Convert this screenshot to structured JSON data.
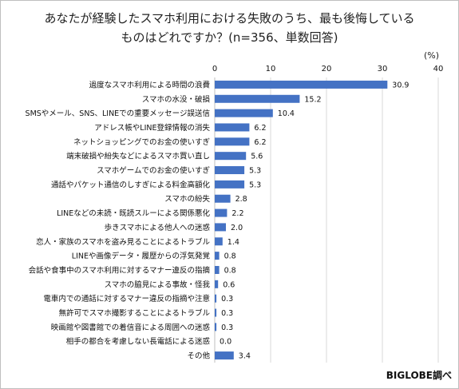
{
  "title_line1": "あなたが経験したスマホ利用における失敗のうち、最も後悔している",
  "title_line2": "ものはどれですか？(n=356、単数回答)",
  "unit": "(%)",
  "source": "BIGLOBE調べ",
  "colors": {
    "bar": "#4472c4",
    "grid": "#d9d9d9",
    "axis": "#bfbfbf"
  },
  "chart_data": {
    "type": "bar",
    "orientation": "horizontal",
    "title": "あなたが経験したスマホ利用における失敗のうち、最も後悔しているものはどれですか？(n=356、単数回答)",
    "unit": "(%)",
    "xlim": [
      0,
      40
    ],
    "xticks": [
      0,
      10,
      20,
      30,
      40
    ],
    "tick_position": "top",
    "grid": true,
    "categories": [
      "過度なスマホ利用による時間の浪費",
      "スマホの水没・破損",
      "SMSやメール、SNS、LINEでの重要メッセージ誤送信",
      "アドレス帳やLINE登録情報の消失",
      "ネットショッピングでのお金の使いすぎ",
      "端末破損や紛失などによるスマホ買い直し",
      "スマホゲームでのお金の使いすぎ",
      "通話やパケット通信のしすぎによる料金高額化",
      "スマホの紛失",
      "LINEなどの未読・既読スルーによる関係悪化",
      "歩きスマホによる他人への迷惑",
      "恋人・家族のスマホを盗み見ることによるトラブル",
      "LINEや画像データ・履歴からの浮気発覚",
      "会話や食事中のスマホ利用に対するマナー違反の指摘",
      "スマホの脇見による事故・怪我",
      "電車内での通話に対するマナー違反の指摘や注意",
      "無許可でスマホ撮影することによるトラブル",
      "映画館や図書館での着信音による周囲への迷惑",
      "相手の都合を考慮しない長電話による迷惑",
      "その他"
    ],
    "values": [
      30.9,
      15.2,
      10.4,
      6.2,
      6.2,
      5.6,
      5.3,
      5.3,
      2.8,
      2.2,
      2.0,
      1.4,
      0.8,
      0.8,
      0.6,
      0.3,
      0.3,
      0.3,
      0.0,
      3.4
    ],
    "value_labels": [
      "30.9",
      "15.2",
      "10.4",
      "6.2",
      "6.2",
      "5.6",
      "5.3",
      "5.3",
      "2.8",
      "2.2",
      "2.0",
      "1.4",
      "0.8",
      "0.8",
      "0.6",
      "0.3",
      "0.3",
      "0.3",
      "0.0",
      "3.4"
    ]
  }
}
